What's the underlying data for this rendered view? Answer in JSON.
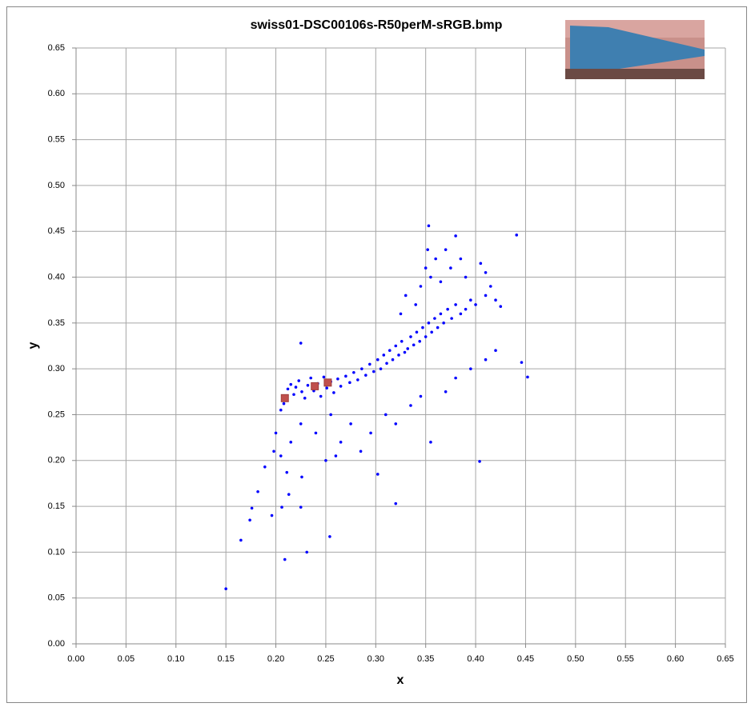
{
  "chart_data": {
    "type": "scatter",
    "title": "swiss01-DSC00106s-R50perM-sRGB.bmp",
    "x_label": "x",
    "y_label": "y",
    "grid": true,
    "xlim": [
      0,
      0.65
    ],
    "ylim": [
      0,
      0.65
    ],
    "xticks": [
      {
        "value": 0,
        "label": "0.00"
      },
      {
        "value": 0.05,
        "label": "0.05"
      },
      {
        "value": 0.1,
        "label": "0.10"
      },
      {
        "value": 0.15,
        "label": "0.15"
      },
      {
        "value": 0.2,
        "label": "0.20"
      },
      {
        "value": 0.25,
        "label": "0.25"
      },
      {
        "value": 0.3,
        "label": "0.30"
      },
      {
        "value": 0.35,
        "label": "0.35"
      },
      {
        "value": 0.4,
        "label": "0.40"
      },
      {
        "value": 0.45,
        "label": "0.45"
      },
      {
        "value": 0.5,
        "label": "0.50"
      },
      {
        "value": 0.55,
        "label": "0.55"
      },
      {
        "value": 0.6,
        "label": "0.60"
      },
      {
        "value": 0.65,
        "label": "0.65"
      }
    ],
    "yticks": [
      {
        "value": 0,
        "label": "0.00"
      },
      {
        "value": 0.05,
        "label": "0.05"
      },
      {
        "value": 0.1,
        "label": "0.10"
      },
      {
        "value": 0.15,
        "label": "0.15"
      },
      {
        "value": 0.2,
        "label": "0.20"
      },
      {
        "value": 0.25,
        "label": "0.25"
      },
      {
        "value": 0.3,
        "label": "0.30"
      },
      {
        "value": 0.35,
        "label": "0.35"
      },
      {
        "value": 0.4,
        "label": "0.40"
      },
      {
        "value": 0.45,
        "label": "0.45"
      },
      {
        "value": 0.5,
        "label": "0.50"
      },
      {
        "value": 0.55,
        "label": "0.55"
      },
      {
        "value": 0.6,
        "label": "0.60"
      },
      {
        "value": 0.65,
        "label": "0.65"
      }
    ],
    "series": [
      {
        "color": "#0000ff",
        "marker": "circle",
        "x": [
          0.15,
          0.209,
          0.231,
          0.254,
          0.165,
          0.174,
          0.176,
          0.182,
          0.189,
          0.196,
          0.206,
          0.211,
          0.213,
          0.225,
          0.226,
          0.32,
          0.302,
          0.404,
          0.441,
          0.452,
          0.446,
          0.225,
          0.353,
          0.205,
          0.208,
          0.21,
          0.212,
          0.215,
          0.218,
          0.22,
          0.223,
          0.226,
          0.229,
          0.232,
          0.235,
          0.238,
          0.242,
          0.245,
          0.248,
          0.251,
          0.255,
          0.258,
          0.262,
          0.265,
          0.27,
          0.274,
          0.278,
          0.282,
          0.286,
          0.29,
          0.294,
          0.298,
          0.302,
          0.305,
          0.308,
          0.311,
          0.314,
          0.317,
          0.32,
          0.323,
          0.326,
          0.329,
          0.332,
          0.335,
          0.338,
          0.341,
          0.344,
          0.347,
          0.35,
          0.353,
          0.356,
          0.359,
          0.362,
          0.365,
          0.368,
          0.372,
          0.376,
          0.38,
          0.385,
          0.39,
          0.395,
          0.4,
          0.41,
          0.415,
          0.42,
          0.425,
          0.34,
          0.345,
          0.35,
          0.352,
          0.355,
          0.36,
          0.365,
          0.37,
          0.375,
          0.38,
          0.385,
          0.39,
          0.405,
          0.41,
          0.33,
          0.325,
          0.225,
          0.24,
          0.255,
          0.265,
          0.275,
          0.285,
          0.295,
          0.31,
          0.32,
          0.335,
          0.345,
          0.355,
          0.37,
          0.38,
          0.395,
          0.41,
          0.42,
          0.2,
          0.198,
          0.205,
          0.215,
          0.25,
          0.26
        ],
        "values": [
          0.06,
          0.092,
          0.1,
          0.117,
          0.113,
          0.135,
          0.148,
          0.166,
          0.193,
          0.14,
          0.149,
          0.187,
          0.163,
          0.149,
          0.182,
          0.153,
          0.185,
          0.199,
          0.446,
          0.291,
          0.307,
          0.328,
          0.456,
          0.255,
          0.262,
          0.27,
          0.278,
          0.283,
          0.272,
          0.28,
          0.287,
          0.275,
          0.268,
          0.282,
          0.29,
          0.276,
          0.284,
          0.27,
          0.291,
          0.279,
          0.286,
          0.274,
          0.289,
          0.281,
          0.292,
          0.285,
          0.296,
          0.288,
          0.3,
          0.293,
          0.305,
          0.297,
          0.31,
          0.3,
          0.315,
          0.306,
          0.32,
          0.31,
          0.325,
          0.315,
          0.33,
          0.318,
          0.322,
          0.335,
          0.326,
          0.34,
          0.33,
          0.345,
          0.335,
          0.35,
          0.34,
          0.355,
          0.345,
          0.36,
          0.35,
          0.365,
          0.355,
          0.37,
          0.36,
          0.365,
          0.375,
          0.37,
          0.38,
          0.39,
          0.375,
          0.368,
          0.37,
          0.39,
          0.41,
          0.43,
          0.4,
          0.42,
          0.395,
          0.43,
          0.41,
          0.445,
          0.42,
          0.4,
          0.415,
          0.405,
          0.38,
          0.36,
          0.24,
          0.23,
          0.25,
          0.22,
          0.24,
          0.21,
          0.23,
          0.25,
          0.24,
          0.26,
          0.27,
          0.22,
          0.275,
          0.29,
          0.3,
          0.31,
          0.32,
          0.23,
          0.21,
          0.205,
          0.22,
          0.2,
          0.205
        ]
      },
      {
        "color": "#c0504d",
        "marker": "square",
        "x": [
          0.209,
          0.239,
          0.252
        ],
        "values": [
          0.268,
          0.281,
          0.285
        ]
      }
    ]
  }
}
